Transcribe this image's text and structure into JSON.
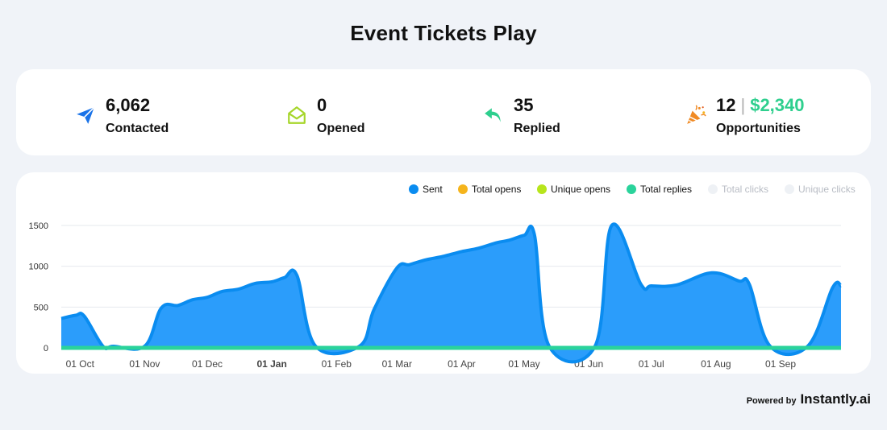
{
  "page": {
    "title": "Event Tickets Play"
  },
  "stats": {
    "contacted": {
      "value": "6,062",
      "label": "Contacted",
      "icon": "paper-plane-icon",
      "color": "#1a73e8"
    },
    "opened": {
      "value": "0",
      "label": "Opened",
      "icon": "open-envelope-icon",
      "color": "#a6d62a"
    },
    "replied": {
      "value": "35",
      "label": "Replied",
      "icon": "reply-arrow-icon",
      "color": "#2ecf8e"
    },
    "opportunities": {
      "count": "12",
      "separator": "|",
      "amount": "$2,340",
      "label": "Opportunities",
      "icon": "party-popper-icon",
      "color": "#f08a24"
    }
  },
  "legend": [
    {
      "name": "Sent",
      "color": "#0a8cf0",
      "active": true
    },
    {
      "name": "Total opens",
      "color": "#f5b41c",
      "active": true
    },
    {
      "name": "Unique opens",
      "color": "#b7e51c",
      "active": true
    },
    {
      "name": "Total replies",
      "color": "#2ad39b",
      "active": true
    },
    {
      "name": "Total clicks",
      "color": "#eef1f5",
      "active": false
    },
    {
      "name": "Unique clicks",
      "color": "#eef1f5",
      "active": false
    }
  ],
  "chart_data": {
    "type": "area",
    "title": "",
    "xlabel": "",
    "ylabel": "",
    "ylim": [
      0,
      1500
    ],
    "yticks": [
      0,
      500,
      1000,
      1500
    ],
    "grid": true,
    "legend_position": "top-right",
    "x_ticks": [
      {
        "date": "2023-10-01",
        "label": "01 Oct",
        "bold": false
      },
      {
        "date": "2023-11-01",
        "label": "01 Nov",
        "bold": false
      },
      {
        "date": "2023-12-01",
        "label": "01 Dec",
        "bold": false
      },
      {
        "date": "2024-01-01",
        "label": "01 Jan",
        "bold": true
      },
      {
        "date": "2024-02-01",
        "label": "01 Feb",
        "bold": false
      },
      {
        "date": "2024-03-01",
        "label": "01 Mar",
        "bold": false
      },
      {
        "date": "2024-04-01",
        "label": "01 Apr",
        "bold": false
      },
      {
        "date": "2024-05-01",
        "label": "01 May",
        "bold": false
      },
      {
        "date": "2024-06-01",
        "label": "01 Jun",
        "bold": false
      },
      {
        "date": "2024-07-01",
        "label": "01 Jul",
        "bold": false
      },
      {
        "date": "2024-08-01",
        "label": "01 Aug",
        "bold": false
      },
      {
        "date": "2024-09-01",
        "label": "01 Sep",
        "bold": false
      }
    ],
    "x_range": [
      "2023-09-22",
      "2024-09-30"
    ],
    "series": [
      {
        "name": "Sent",
        "color": "#0a8cf0",
        "points": [
          [
            "2023-09-22",
            360
          ],
          [
            "2023-09-29",
            400
          ],
          [
            "2023-10-03",
            390
          ],
          [
            "2023-10-12",
            20
          ],
          [
            "2023-10-17",
            20
          ],
          [
            "2023-11-01",
            20
          ],
          [
            "2023-11-09",
            490
          ],
          [
            "2023-11-17",
            520
          ],
          [
            "2023-11-24",
            590
          ],
          [
            "2023-12-01",
            620
          ],
          [
            "2023-12-08",
            690
          ],
          [
            "2023-12-16",
            720
          ],
          [
            "2023-12-24",
            790
          ],
          [
            "2024-01-01",
            810
          ],
          [
            "2024-01-07",
            860
          ],
          [
            "2024-01-13",
            890
          ],
          [
            "2024-01-22",
            20
          ],
          [
            "2024-02-12",
            20
          ],
          [
            "2024-02-19",
            470
          ],
          [
            "2024-03-01",
            980
          ],
          [
            "2024-03-07",
            1020
          ],
          [
            "2024-03-15",
            1080
          ],
          [
            "2024-03-23",
            1120
          ],
          [
            "2024-04-01",
            1180
          ],
          [
            "2024-04-09",
            1220
          ],
          [
            "2024-04-18",
            1290
          ],
          [
            "2024-04-24",
            1320
          ],
          [
            "2024-05-01",
            1380
          ],
          [
            "2024-05-06",
            1380
          ],
          [
            "2024-05-13",
            20
          ],
          [
            "2024-06-04",
            20
          ],
          [
            "2024-06-12",
            1500
          ],
          [
            "2024-06-26",
            780
          ],
          [
            "2024-07-01",
            760
          ],
          [
            "2024-07-13",
            770
          ],
          [
            "2024-07-30",
            920
          ],
          [
            "2024-08-12",
            820
          ],
          [
            "2024-08-17",
            780
          ],
          [
            "2024-08-27",
            20
          ],
          [
            "2024-09-14",
            20
          ],
          [
            "2024-09-26",
            740
          ],
          [
            "2024-09-30",
            760
          ]
        ]
      },
      {
        "name": "Total opens",
        "color": "#c8cc24",
        "points": [
          [
            "2023-09-22",
            0
          ],
          [
            "2024-09-30",
            0
          ]
        ]
      },
      {
        "name": "Unique opens",
        "color": "#b7e51c",
        "points": [
          [
            "2023-09-22",
            0
          ],
          [
            "2024-09-30",
            0
          ]
        ]
      },
      {
        "name": "Total replies",
        "color": "#2ad39b",
        "points": [
          [
            "2023-09-22",
            0
          ],
          [
            "2024-09-30",
            0
          ]
        ]
      }
    ]
  },
  "footer": {
    "powered_by": "Powered by",
    "brand": "Instantly.ai"
  }
}
